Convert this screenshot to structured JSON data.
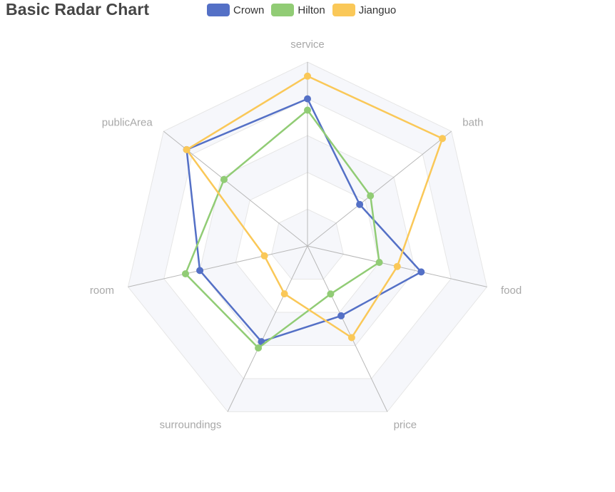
{
  "title": "Basic Radar Chart",
  "colors": {
    "ring_light": "#ffffff",
    "ring_shade": "#f6f7fb",
    "split_line": "#e6e6e6",
    "axis_line": "#b8b8b8"
  },
  "chart_data": {
    "type": "radar",
    "indicators": [
      {
        "name": "service",
        "max": 6500
      },
      {
        "name": "bath",
        "max": 16000
      },
      {
        "name": "food",
        "max": 30000
      },
      {
        "name": "price",
        "max": 38000
      },
      {
        "name": "surroundings",
        "max": 52000
      },
      {
        "name": "room",
        "max": 25000
      },
      {
        "name": "publicArea",
        "max": 25000
      }
    ],
    "series": [
      {
        "name": "Crown",
        "color": "#5470c6",
        "values": [
          5200,
          5800,
          19000,
          16000,
          30000,
          15000,
          21000
        ]
      },
      {
        "name": "Hilton",
        "color": "#91cc75",
        "values": [
          4800,
          7000,
          12000,
          11000,
          32000,
          17000,
          14500
        ]
      },
      {
        "name": "Jianguo",
        "color": "#fac858",
        "values": [
          6000,
          15000,
          15000,
          21000,
          15000,
          6000,
          21000
        ]
      }
    ],
    "legend_position": "top",
    "split_number": 5
  }
}
